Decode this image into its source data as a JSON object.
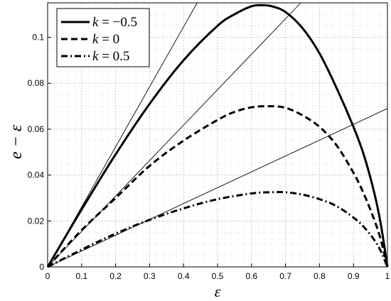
{
  "chart_data": {
    "type": "line",
    "xlabel": "ε",
    "ylabel": "e − ε",
    "xlim": [
      0,
      1
    ],
    "ylim": [
      0,
      0.115
    ],
    "xticks": [
      "0",
      "0.1",
      "0.2",
      "0.3",
      "0.4",
      "0.5",
      "0.6",
      "0.7",
      "0.8",
      "0.9",
      "1"
    ],
    "yticks": [
      "0",
      "0.02",
      "0.04",
      "0.06",
      "0.08",
      "0.1"
    ],
    "grid": true,
    "legend_position": "top-left",
    "series": [
      {
        "name": "k = −0.5",
        "k": "−0.5",
        "style": "solid",
        "x": [
          0,
          0.1,
          0.2,
          0.3,
          0.4,
          0.5,
          0.55,
          0.6,
          0.63,
          0.66,
          0.7,
          0.75,
          0.8,
          0.85,
          0.9,
          0.93,
          0.96,
          0.98,
          1
        ],
        "y": [
          0,
          0.025,
          0.049,
          0.071,
          0.09,
          0.105,
          0.11,
          0.1135,
          0.114,
          0.1135,
          0.111,
          0.104,
          0.093,
          0.078,
          0.061,
          0.049,
          0.033,
          0.019,
          0
        ]
      },
      {
        "name": "k = 0",
        "k": "0",
        "style": "dashed",
        "x": [
          0,
          0.1,
          0.2,
          0.3,
          0.4,
          0.5,
          0.55,
          0.6,
          0.65,
          0.7,
          0.75,
          0.8,
          0.85,
          0.9,
          0.93,
          0.96,
          0.98,
          1
        ],
        "y": [
          0,
          0.016,
          0.03,
          0.044,
          0.055,
          0.064,
          0.0675,
          0.0695,
          0.07,
          0.0693,
          0.066,
          0.061,
          0.053,
          0.041,
          0.032,
          0.021,
          0.012,
          0
        ]
      },
      {
        "name": "k = 0.5",
        "k": "0.5",
        "style": "dashdot",
        "x": [
          0,
          0.1,
          0.2,
          0.3,
          0.4,
          0.5,
          0.6,
          0.65,
          0.7,
          0.75,
          0.8,
          0.85,
          0.9,
          0.93,
          0.96,
          0.98,
          1
        ],
        "y": [
          0,
          0.0075,
          0.0145,
          0.0205,
          0.0255,
          0.0295,
          0.032,
          0.0325,
          0.0325,
          0.0315,
          0.0295,
          0.0265,
          0.0215,
          0.0175,
          0.012,
          0.007,
          0
        ]
      }
    ],
    "reference_lines": [
      {
        "style": "thin",
        "x": [
          0,
          0.44
        ],
        "y": [
          0,
          0.115
        ]
      },
      {
        "style": "thin",
        "x": [
          0,
          0.745
        ],
        "y": [
          0,
          0.115
        ]
      },
      {
        "style": "thin",
        "x": [
          0,
          1
        ],
        "y": [
          0,
          0.069
        ]
      }
    ],
    "legend_label": "k"
  }
}
